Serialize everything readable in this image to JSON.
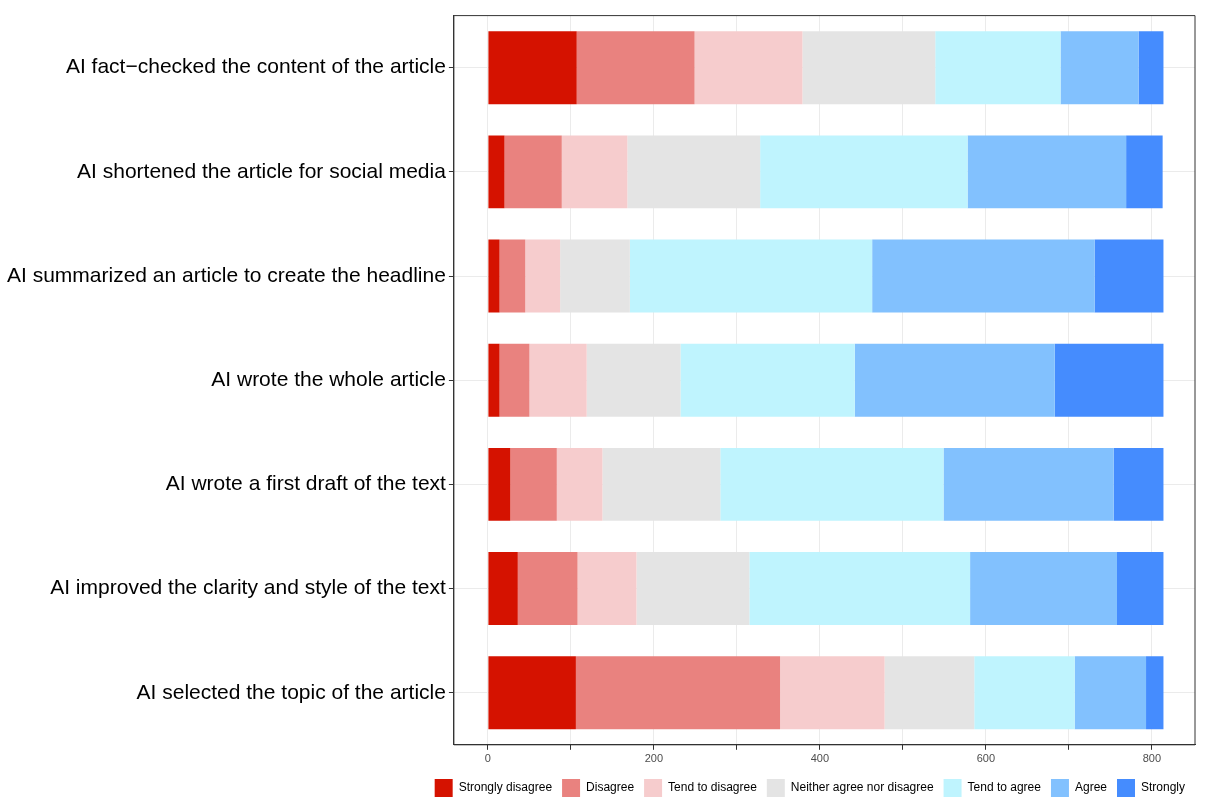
{
  "chart_data": {
    "type": "bar",
    "orientation": "horizontal",
    "stacked": true,
    "categories": [
      "AI fact−checked the content of the article",
      "AI shortened the article for social media",
      "AI summarized an article to create the headline",
      "AI wrote the whole article",
      "AI wrote a first draft of the text",
      "AI improved the clarity and style of the text",
      "AI selected the topic of the article"
    ],
    "series": [
      {
        "name": "Strongly disagree",
        "color": "#d51200",
        "values": [
          107,
          20,
          14,
          14,
          27,
          36,
          106
        ]
      },
      {
        "name": "Disagree",
        "color": "#e9827f",
        "values": [
          142,
          69,
          31,
          36,
          56,
          72,
          246
        ]
      },
      {
        "name": "Tend to disagree",
        "color": "#f6cccd",
        "values": [
          130,
          79,
          42,
          69,
          55,
          71,
          126
        ]
      },
      {
        "name": "Neither agree nor disagree",
        "color": "#e4e4e4",
        "values": [
          160,
          160,
          84,
          113,
          142,
          136,
          108
        ]
      },
      {
        "name": "Tend to agree",
        "color": "#bff4fe",
        "values": [
          151,
          250,
          292,
          210,
          269,
          266,
          121
        ]
      },
      {
        "name": "Agree",
        "color": "#82c1fe",
        "values": [
          94,
          191,
          268,
          241,
          205,
          177,
          86
        ]
      },
      {
        "name": "Strongly",
        "color": "#458cfe",
        "values": [
          30,
          44,
          83,
          131,
          60,
          56,
          21
        ]
      }
    ],
    "xlim": [
      -41,
      852
    ],
    "xticks": [
      0,
      {
        "value": 100,
        "label": null
      },
      200,
      {
        "value": 300,
        "label": null
      },
      400,
      {
        "value": 500,
        "label": null
      },
      600,
      {
        "value": 700,
        "label": null
      },
      800
    ],
    "grid": true,
    "legend": "bottom"
  }
}
